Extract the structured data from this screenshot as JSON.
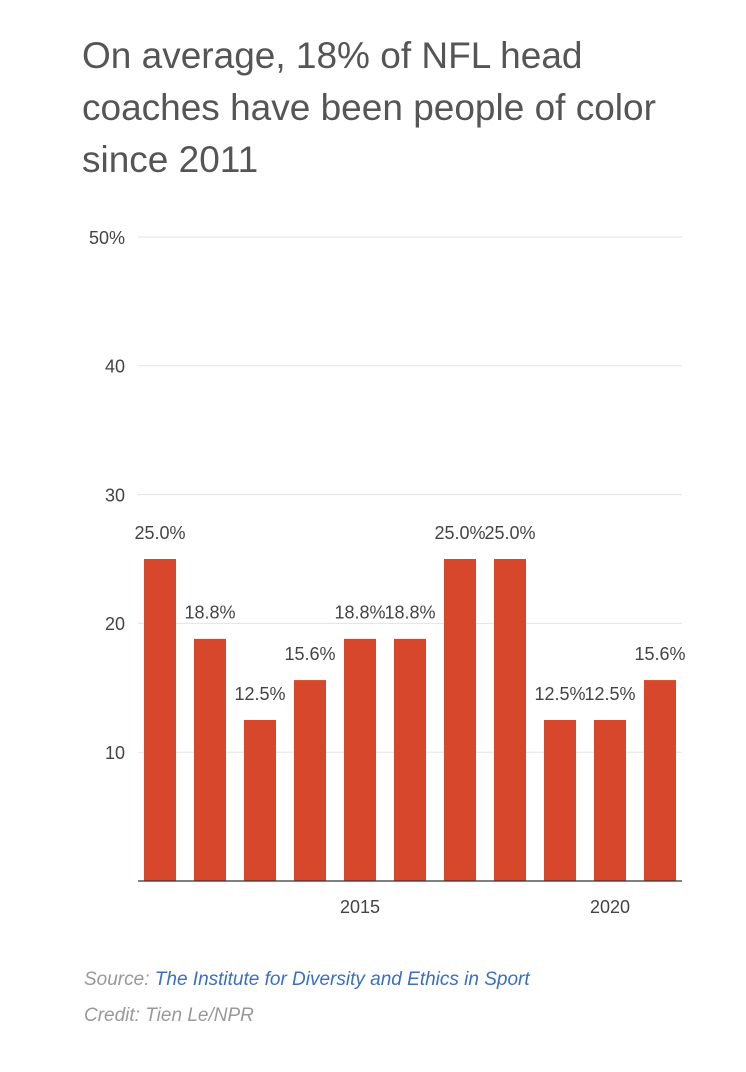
{
  "chart_data": {
    "type": "bar",
    "title": "On average, 18% of NFL head coaches have been people of color since 2011",
    "categories": [
      null,
      null,
      null,
      null,
      "2015",
      null,
      null,
      null,
      null,
      "2020",
      null
    ],
    "values": [
      25,
      18.8,
      12.5,
      15.6,
      18.8,
      18.8,
      25,
      25,
      12.5,
      12.5,
      15.6
    ],
    "value_labels": [
      "25.0%",
      "18.8%",
      "12.5%",
      "15.6%",
      "18.8%",
      "18.8%",
      "25.0%",
      "25.0%",
      "12.5%",
      "12.5%",
      "15.6%"
    ],
    "color": "#d6472c",
    "ylim": [
      0,
      50
    ],
    "yticks": [
      10,
      20,
      30,
      {
        "value": 50,
        "label": "50%"
      },
      40
    ],
    "grid": true
  },
  "footer": {
    "source_label": "Source:",
    "source": "The Institute for Diversity and Ethics in Sport",
    "credit": "Credit: Tien Le/NPR"
  }
}
